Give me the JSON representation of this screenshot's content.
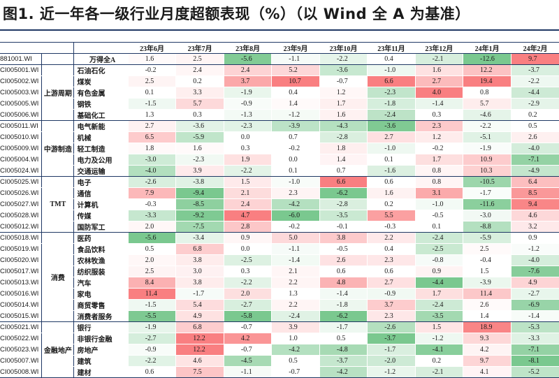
{
  "title": "图1. 近一年各一级行业月度超额表现（%）（以 Wind 全 A 为基准）",
  "months": [
    "23年6月",
    "23年7月",
    "23年8月",
    "23年9月",
    "23年10月",
    "23年11月",
    "23年12月",
    "24年1月",
    "24年2月"
  ],
  "colors": {
    "neg_rgb": "99,190,123",
    "pos_rgb": "248,105,107",
    "rule": "#1f3864"
  },
  "benchmark": {
    "code": "881001.WI",
    "name": "万得全A",
    "values": [
      "1.6",
      "2.5",
      "-5.6",
      "-1.1",
      "-2.2",
      "0.4",
      "-2.1",
      "-12.6",
      "9.7"
    ]
  },
  "groups": [
    {
      "label": "上游周期",
      "rows": [
        {
          "code": "CI005001.WI",
          "name": "石油石化",
          "values": [
            "-0.2",
            "2.4",
            "2.4",
            "5.2",
            "-3.6",
            "-1.0",
            "1.6",
            "12.2",
            "-3.7"
          ]
        },
        {
          "code": "CI005002.WI",
          "name": "煤炭",
          "values": [
            "2.5",
            "0.2",
            "3.7",
            "10.7",
            "-0.7",
            "6.6",
            "2.7",
            "19.4",
            "-2.2"
          ]
        },
        {
          "code": "CI005003.WI",
          "name": "有色金属",
          "values": [
            "0.1",
            "3.3",
            "-1.9",
            "0.4",
            "1.2",
            "-2.3",
            "4.0",
            "0.8",
            "-4.4"
          ]
        },
        {
          "code": "CI005005.WI",
          "name": "钢铁",
          "values": [
            "-1.5",
            "5.7",
            "-0.9",
            "1.4",
            "1.7",
            "-1.8",
            "-1.4",
            "5.7",
            "-2.9"
          ]
        },
        {
          "code": "CI005006.WI",
          "name": "基础化工",
          "values": [
            "1.3",
            "0.3",
            "-1.3",
            "-1.2",
            "1.6",
            "-2.4",
            "0.3",
            "-4.6",
            "0.2"
          ]
        }
      ]
    },
    {
      "label": "中游制造",
      "rows": [
        {
          "code": "CI005011.WI",
          "name": "电气新能",
          "values": [
            "2.7",
            "-3.6",
            "-2.3",
            "-3.9",
            "-4.3",
            "-3.6",
            "2.3",
            "-2.2",
            "0.5"
          ]
        },
        {
          "code": "CI005010.WI",
          "name": "机械",
          "values": [
            "6.5",
            "-5.9",
            "0.0",
            "0.7",
            "-2.8",
            "2.7",
            "1.2",
            "-5.1",
            "2.6"
          ]
        },
        {
          "code": "CI005009.WI",
          "name": "轻工制造",
          "values": [
            "1.8",
            "1.6",
            "0.3",
            "-0.2",
            "1.8",
            "-1.0",
            "-0.2",
            "-1.9",
            "-4.0"
          ]
        },
        {
          "code": "CI005004.WI",
          "name": "电力及公用",
          "values": [
            "-3.0",
            "-2.3",
            "1.9",
            "0.0",
            "1.4",
            "0.1",
            "1.7",
            "10.9",
            "-7.1"
          ]
        },
        {
          "code": "CI005024.WI",
          "name": "交通运输",
          "values": [
            "-4.0",
            "3.9",
            "-2.2",
            "0.1",
            "0.7",
            "-1.6",
            "0.8",
            "10.3",
            "-4.9"
          ]
        }
      ]
    },
    {
      "label": "TMT",
      "rows": [
        {
          "code": "CI005025.WI",
          "name": "电子",
          "values": [
            "-2.6",
            "-3.8",
            "1.5",
            "-1.0",
            "6.6",
            "0.6",
            "0.8",
            "-10.5",
            "6.4"
          ]
        },
        {
          "code": "CI005026.WI",
          "name": "通信",
          "values": [
            "7.9",
            "-9.4",
            "2.1",
            "2.3",
            "-6.2",
            "1.6",
            "3.1",
            "-1.7",
            "8.5"
          ]
        },
        {
          "code": "CI005027.WI",
          "name": "计算机",
          "values": [
            "-0.3",
            "-8.5",
            "2.4",
            "-4.2",
            "-2.8",
            "0.2",
            "-1.0",
            "-11.6",
            "9.4"
          ]
        },
        {
          "code": "CI005028.WI",
          "name": "传媒",
          "values": [
            "-3.3",
            "-9.2",
            "4.7",
            "-6.0",
            "-3.5",
            "5.5",
            "-0.5",
            "-3.0",
            "4.6"
          ]
        },
        {
          "code": "CI005012.WI",
          "name": "国防军工",
          "values": [
            "2.0",
            "-7.5",
            "2.8",
            "-0.2",
            "-0.1",
            "-0.3",
            "0.1",
            "-8.8",
            "3.2"
          ]
        }
      ]
    },
    {
      "label": "消费",
      "rows": [
        {
          "code": "CI005018.WI",
          "name": "医药",
          "values": [
            "-5.6",
            "-3.4",
            "0.9",
            "5.0",
            "3.8",
            "2.2",
            "-2.4",
            "-5.9",
            "0.9"
          ]
        },
        {
          "code": "CI005019.WI",
          "name": "食品饮料",
          "values": [
            "0.5",
            "6.8",
            "0.0",
            "-1.1",
            "-0.5",
            "0.4",
            "-2.5",
            "2.5",
            "-1.2"
          ]
        },
        {
          "code": "CI005020.WI",
          "name": "农林牧渔",
          "values": [
            "2.0",
            "3.8",
            "-2.5",
            "-1.4",
            "2.6",
            "2.3",
            "-0.8",
            "-0.4",
            "-4.0"
          ]
        },
        {
          "code": "CI005017.WI",
          "name": "纺织服装",
          "values": [
            "2.5",
            "3.0",
            "0.3",
            "2.1",
            "0.6",
            "0.6",
            "0.9",
            "1.5",
            "-7.6"
          ]
        },
        {
          "code": "CI005013.WI",
          "name": "汽车",
          "values": [
            "8.4",
            "3.8",
            "-2.2",
            "2.2",
            "4.8",
            "2.7",
            "-4.4",
            "-3.9",
            "4.9"
          ]
        },
        {
          "code": "CI005016.WI",
          "name": "家电",
          "values": [
            "11.4",
            "-1.7",
            "2.0",
            "1.3",
            "-1.4",
            "-0.9",
            "1.7",
            "11.4",
            "-2.7"
          ]
        },
        {
          "code": "CI005014.WI",
          "name": "商贸零售",
          "values": [
            "-1.5",
            "5.4",
            "-2.7",
            "2.2",
            "-1.8",
            "3.7",
            "-2.4",
            "2.6",
            "-6.9"
          ]
        },
        {
          "code": "CI005015.WI",
          "name": "消费者服务",
          "values": [
            "-5.5",
            "4.9",
            "-5.8",
            "-2.4",
            "-6.2",
            "2.3",
            "-3.5",
            "1.4",
            "-1.4"
          ]
        }
      ]
    },
    {
      "label": "金融地产",
      "rows": [
        {
          "code": "CI005021.WI",
          "name": "银行",
          "values": [
            "-1.9",
            "6.8",
            "-0.7",
            "3.9",
            "-1.7",
            "-2.6",
            "1.5",
            "18.9",
            "-5.3"
          ]
        },
        {
          "code": "CI005022.WI",
          "name": "非银行金融",
          "values": [
            "-2.7",
            "12.2",
            "4.2",
            "1.0",
            "0.5",
            "-3.7",
            "-1.2",
            "9.3",
            "-3.3"
          ]
        },
        {
          "code": "CI005023.WI",
          "name": "房地产",
          "values": [
            "-0.9",
            "12.2",
            "-0.7",
            "-4.2",
            "-4.8",
            "-1.7",
            "-4.1",
            "4.2",
            "-7.1"
          ]
        },
        {
          "code": "CI005007.WI",
          "name": "建筑",
          "values": [
            "-2.2",
            "4.6",
            "-4.5",
            "0.5",
            "-3.7",
            "-2.0",
            "0.2",
            "9.7",
            "-8.1"
          ]
        },
        {
          "code": "CI005008.WI",
          "name": "建材",
          "values": [
            "0.6",
            "7.5",
            "-1.1",
            "-0.7",
            "-4.2",
            "-1.2",
            "-2.1",
            "4.1",
            "-5.2"
          ]
        }
      ]
    }
  ]
}
